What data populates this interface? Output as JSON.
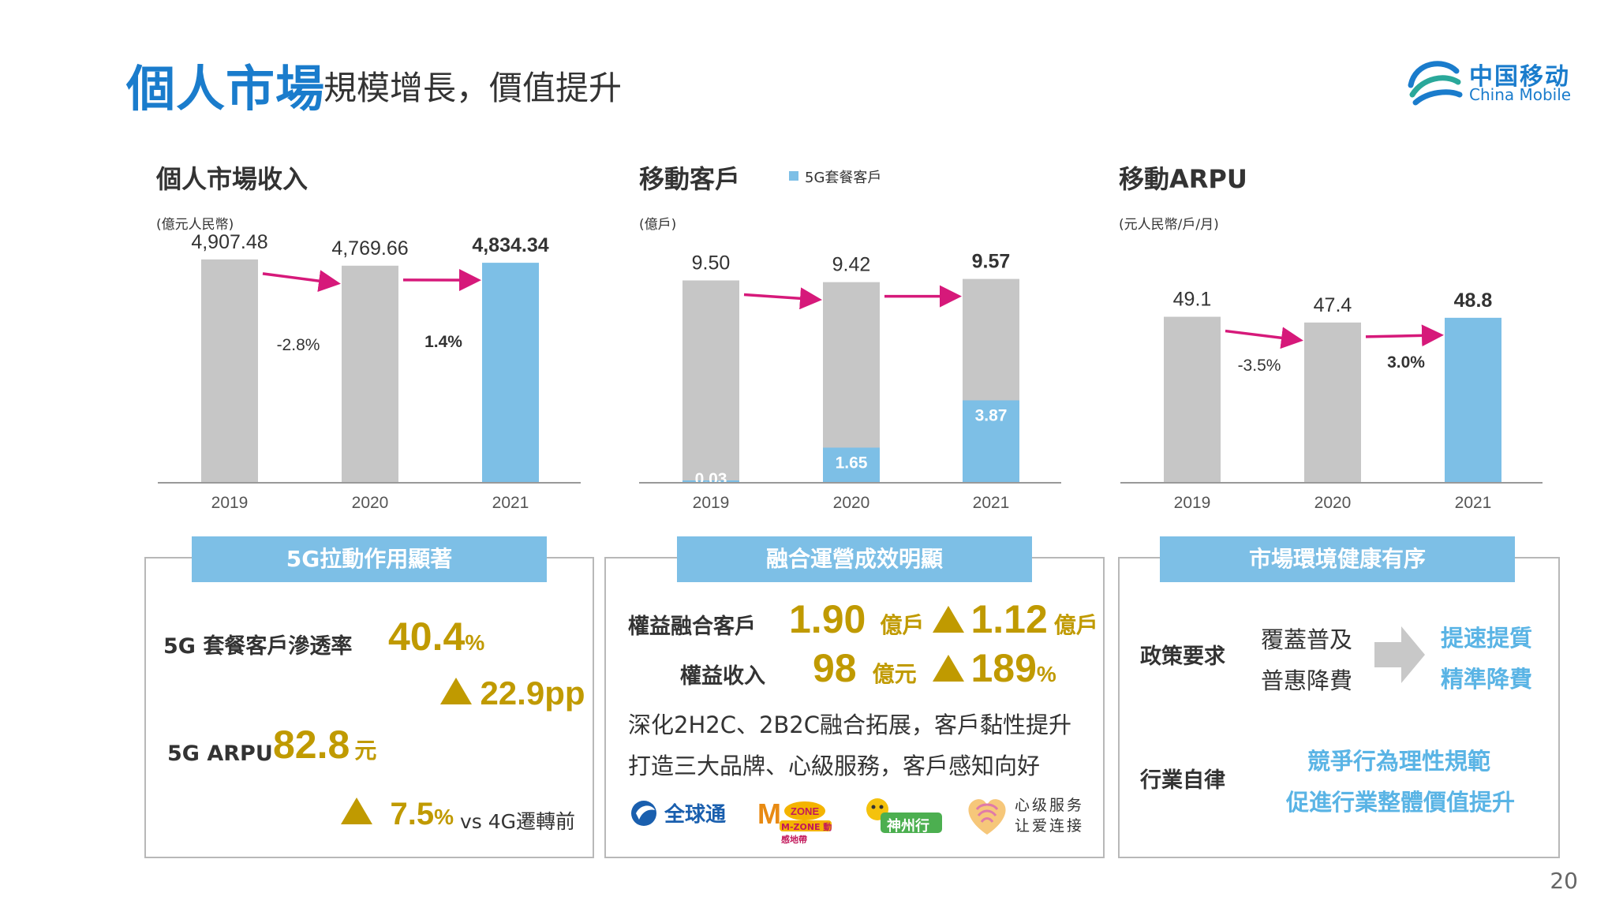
{
  "header": {
    "title": "個人市場",
    "subtitle": "規模增長，價值提升",
    "logo_cn": "中国移动",
    "logo_en": "China Mobile"
  },
  "chart_data": [
    {
      "type": "bar",
      "title": "個人市場收入",
      "unit": "(億元人民幣)",
      "categories": [
        "2019",
        "2020",
        "2021"
      ],
      "values": [
        4907.48,
        4769.66,
        4834.34
      ],
      "value_labels": [
        "4,907.48",
        "4,769.66",
        "4,834.34"
      ],
      "changes": [
        "-2.8%",
        "1.4%"
      ],
      "ylim": [
        0,
        5200
      ],
      "colors": [
        "#c6c6c6",
        "#c6c6c6",
        "#7dbfe6"
      ]
    },
    {
      "type": "bar",
      "title": "移動客戶",
      "unit": "(億戶)",
      "legend": "5G套餐客戶",
      "categories": [
        "2019",
        "2020",
        "2021"
      ],
      "values": [
        9.5,
        9.42,
        9.57
      ],
      "value_labels": [
        "9.50",
        "9.42",
        "9.57"
      ],
      "series": [
        {
          "name": "5G套餐客戶",
          "values": [
            0.03,
            1.65,
            3.87
          ],
          "labels": [
            "0.03",
            "1.65",
            "3.87"
          ]
        }
      ],
      "ylim": [
        0,
        10
      ]
    },
    {
      "type": "bar",
      "title": "移動ARPU",
      "unit": "(元人民幣/戶/月)",
      "categories": [
        "2019",
        "2020",
        "2021"
      ],
      "values": [
        49.1,
        47.4,
        48.8
      ],
      "value_labels": [
        "49.1",
        "47.4",
        "48.8"
      ],
      "changes": [
        "-3.5%",
        "3.0%"
      ],
      "ylim": [
        0,
        70
      ],
      "colors": [
        "#c6c6c6",
        "#c6c6c6",
        "#7dbfe6"
      ]
    }
  ],
  "panel1": {
    "title": "5G拉動作用顯著",
    "penetration_label": "5G 套餐客戶滲透率",
    "penetration_value": "40.4",
    "penetration_unit": "%",
    "penetration_change": "22.9pp",
    "arpu_label": "5G ARPU",
    "arpu_value": "82.8",
    "arpu_unit": "元",
    "arpu_change": "7.5",
    "arpu_change_unit": "%",
    "arpu_compare": "vs 4G遷轉前"
  },
  "panel2": {
    "title": "融合運營成效明顯",
    "row1_label": "權益融合客戶",
    "row1_value": "1.90",
    "row1_unit": "億戶",
    "row1_change": "1.12",
    "row1_change_unit": "億戶",
    "row2_label": "權益收入",
    "row2_value": "98",
    "row2_unit": "億元",
    "row2_change": "189",
    "row2_change_unit": "%",
    "line1": "深化2H2C、2B2C融合拓展，客戶黏性提升",
    "line2": "打造三大品牌、心級服務，客戶感知向好",
    "brands": [
      "全球通",
      "M-ZONE 動感地帶",
      "神州行",
      "心级服务 让爱连接"
    ]
  },
  "panel3": {
    "title": "市場環境健康有序",
    "policy_label": "政策要求",
    "policy_left1": "覆蓋普及",
    "policy_left2": "普惠降費",
    "policy_right1": "提速提質",
    "policy_right2": "精準降費",
    "industry_label": "行業自律",
    "industry_line1": "競爭行為理性規範",
    "industry_line2": "促進行業整體價值提升"
  },
  "page_number": "20"
}
